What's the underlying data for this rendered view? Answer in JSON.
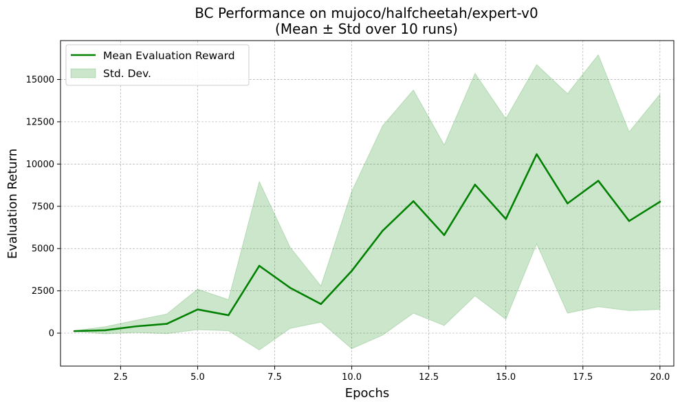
{
  "chart_data": {
    "type": "line",
    "title_line1": "BC Performance on mujoco/halfcheetah/expert-v0",
    "title_line2": "(Mean ± Std over 10 runs)",
    "xlabel": "Epochs",
    "ylabel": "Evaluation Return",
    "xlim": [
      0.55,
      20.45
    ],
    "ylim": [
      -1950,
      17300
    ],
    "x_ticks": [
      2.5,
      5.0,
      7.5,
      10.0,
      12.5,
      15.0,
      17.5,
      20.0
    ],
    "x_tick_labels": [
      "2.5",
      "5.0",
      "7.5",
      "10.0",
      "12.5",
      "15.0",
      "17.5",
      "20.0"
    ],
    "y_ticks": [
      0,
      2500,
      5000,
      7500,
      10000,
      12500,
      15000
    ],
    "y_tick_labels": [
      "0",
      "2500",
      "5000",
      "7500",
      "10000",
      "12500",
      "15000"
    ],
    "grid": true,
    "legend_position": "top-left",
    "x": [
      1,
      2,
      3,
      4,
      5,
      6,
      7,
      8,
      9,
      10,
      11,
      12,
      13,
      14,
      15,
      16,
      17,
      18,
      19,
      20
    ],
    "series": [
      {
        "name": "Mean Evaluation Reward",
        "color": "#008000",
        "values": [
          120,
          170,
          400,
          550,
          1400,
          1060,
          3980,
          2680,
          1720,
          3680,
          6050,
          7800,
          5800,
          8780,
          6750,
          10580,
          7670,
          9010,
          6630,
          7770
        ]
      },
      {
        "name": "Std. Dev.",
        "color": "#cde5cd",
        "upper": [
          140,
          380,
          760,
          1130,
          2600,
          1980,
          8960,
          5080,
          2790,
          8380,
          12260,
          14380,
          11130,
          15360,
          12680,
          15880,
          14160,
          16460,
          11900,
          14130
        ],
        "lower": [
          100,
          -40,
          40,
          -30,
          200,
          140,
          -1000,
          280,
          650,
          -920,
          -120,
          1180,
          450,
          2200,
          820,
          5280,
          1180,
          1560,
          1330,
          1400
        ]
      }
    ]
  }
}
